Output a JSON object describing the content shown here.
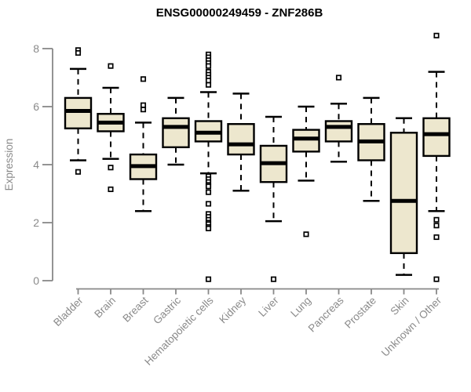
{
  "figure": {
    "title": "ENSG00000249459 - ZNF286B",
    "ylabel": "Expression"
  },
  "chart_data": {
    "type": "boxplot",
    "title": "ENSG00000249459 - ZNF286B",
    "xlabel": "",
    "ylabel": "Expression",
    "ylim": [
      0,
      8.6
    ],
    "yticks": [
      0,
      2,
      4,
      6,
      8
    ],
    "grid": false,
    "legend": "none",
    "colors": {
      "box_fill": "#EDE7CE",
      "box_stroke": "#000000",
      "axis_line": "#888888",
      "axis_text": "#8A8A8A",
      "background": "#FFFFFF"
    },
    "categories": [
      "Bladder",
      "Brain",
      "Breast",
      "Gastric",
      "Hematopoietic cells",
      "Kidney",
      "Liver",
      "Lung",
      "Pancreas",
      "Prostate",
      "Skin",
      "Unknown / Other"
    ],
    "series": [
      {
        "name": "Bladder",
        "whisker_low": 4.15,
        "q1": 5.25,
        "median": 5.85,
        "q3": 6.3,
        "whisker_high": 7.3,
        "outliers": [
          7.95,
          7.85,
          3.75
        ]
      },
      {
        "name": "Brain",
        "whisker_low": 4.2,
        "q1": 5.15,
        "median": 5.45,
        "q3": 5.75,
        "whisker_high": 6.65,
        "outliers": [
          7.4,
          3.9,
          3.15
        ]
      },
      {
        "name": "Breast",
        "whisker_low": 2.4,
        "q1": 3.5,
        "median": 3.95,
        "q3": 4.35,
        "whisker_high": 5.45,
        "outliers": [
          6.95,
          6.05,
          5.9
        ]
      },
      {
        "name": "Gastric",
        "whisker_low": 4.0,
        "q1": 4.6,
        "median": 5.3,
        "q3": 5.6,
        "whisker_high": 6.3,
        "outliers": []
      },
      {
        "name": "Hematopoietic cells",
        "whisker_low": 3.7,
        "q1": 4.8,
        "median": 5.1,
        "q3": 5.5,
        "whisker_high": 6.5,
        "outliers": [
          7.8,
          7.7,
          7.6,
          7.5,
          7.4,
          7.2,
          7.1,
          7.0,
          6.9,
          6.75,
          3.6,
          3.5,
          3.4,
          3.3,
          3.25,
          3.05,
          2.65,
          2.3,
          2.2,
          2.1,
          2.0,
          1.95,
          1.85,
          1.8,
          0.05
        ]
      },
      {
        "name": "Kidney",
        "whisker_low": 3.1,
        "q1": 4.35,
        "median": 4.7,
        "q3": 5.4,
        "whisker_high": 6.45,
        "outliers": []
      },
      {
        "name": "Liver",
        "whisker_low": 2.05,
        "q1": 3.4,
        "median": 4.05,
        "q3": 4.65,
        "whisker_high": 5.65,
        "outliers": [
          0.05
        ]
      },
      {
        "name": "Lung",
        "whisker_low": 3.45,
        "q1": 4.45,
        "median": 4.9,
        "q3": 5.2,
        "whisker_high": 6.0,
        "outliers": [
          1.6
        ]
      },
      {
        "name": "Pancreas",
        "whisker_low": 4.1,
        "q1": 4.8,
        "median": 5.3,
        "q3": 5.5,
        "whisker_high": 6.1,
        "outliers": [
          7.0
        ]
      },
      {
        "name": "Prostate",
        "whisker_low": 2.75,
        "q1": 4.15,
        "median": 4.8,
        "q3": 5.4,
        "whisker_high": 6.3,
        "outliers": []
      },
      {
        "name": "Skin",
        "whisker_low": 0.2,
        "q1": 0.95,
        "median": 2.75,
        "q3": 5.1,
        "whisker_high": 5.6,
        "outliers": []
      },
      {
        "name": "Unknown / Other",
        "whisker_low": 2.4,
        "q1": 4.3,
        "median": 5.05,
        "q3": 5.6,
        "whisker_high": 7.2,
        "outliers": [
          8.45,
          2.1,
          1.9,
          1.5,
          0.05
        ]
      }
    ]
  }
}
